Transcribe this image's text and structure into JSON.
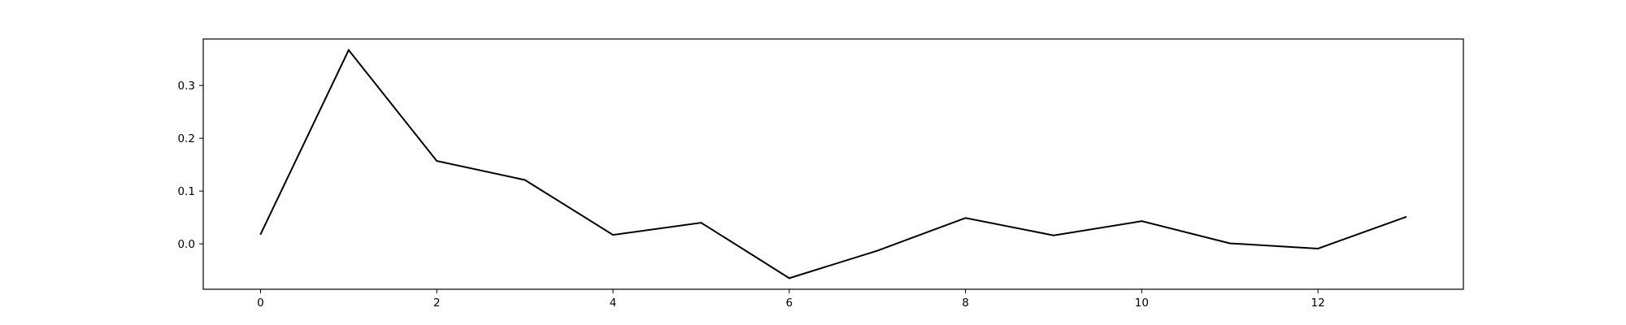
{
  "chart_data": {
    "type": "line",
    "title": "",
    "xlabel": "",
    "ylabel": "",
    "x": [
      0,
      1,
      2,
      3,
      4,
      5,
      6,
      7,
      8,
      9,
      10,
      11,
      12,
      13
    ],
    "series": [
      {
        "values": [
          0.018,
          0.367,
          0.157,
          0.121,
          0.017,
          0.04,
          -0.065,
          -0.013,
          0.049,
          0.016,
          0.043,
          0.001,
          -0.009,
          0.051
        ],
        "color": "#000000"
      }
    ],
    "xlim": [
      -0.65,
      13.65
    ],
    "ylim": [
      -0.086,
      0.388
    ],
    "xticks": [
      0,
      2,
      4,
      6,
      8,
      10,
      12
    ],
    "xtick_labels": [
      "0",
      "2",
      "4",
      "6",
      "8",
      "10",
      "12"
    ],
    "yticks": [
      0.0,
      0.1,
      0.2,
      0.3
    ],
    "ytick_labels": [
      "0.0",
      "0.1",
      "0.2",
      "0.3"
    ],
    "grid": false,
    "legend": "none"
  }
}
